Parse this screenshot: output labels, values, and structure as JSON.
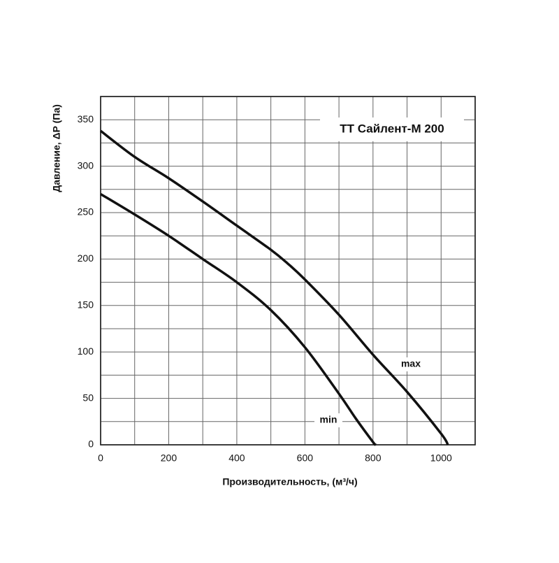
{
  "chart_data": {
    "type": "line",
    "title": "ТТ Сайлент-М 200",
    "x_label": "Производительность, (м³/ч)",
    "y_label": "Давление, ΔP (Па)",
    "xlim": [
      0,
      1100
    ],
    "ylim": [
      0,
      375
    ],
    "xticks": [
      0,
      200,
      400,
      600,
      800,
      1000
    ],
    "yticks": [
      0,
      50,
      100,
      150,
      200,
      250,
      300,
      350
    ],
    "x_minor_grid": [
      100,
      300,
      500,
      700,
      900,
      1100
    ],
    "y_minor_grid": [
      25,
      75,
      125,
      175,
      225,
      275,
      325,
      375
    ],
    "grid": true,
    "series": [
      {
        "name": "max",
        "color": "#111111",
        "x": [
          0,
          100,
          200,
          300,
          400,
          500,
          550,
          600,
          700,
          800,
          900,
          1000,
          1020
        ],
        "values": [
          338,
          310,
          287,
          262,
          236,
          210,
          195,
          178,
          140,
          97,
          57,
          12,
          0
        ]
      },
      {
        "name": "min",
        "color": "#111111",
        "x": [
          0,
          100,
          200,
          300,
          400,
          500,
          600,
          700,
          750,
          800,
          808
        ],
        "values": [
          270,
          248,
          225,
          200,
          175,
          145,
          105,
          55,
          28,
          3,
          0
        ]
      }
    ]
  }
}
